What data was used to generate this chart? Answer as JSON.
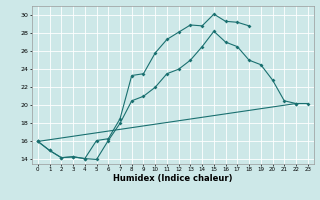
{
  "title": "",
  "xlabel": "Humidex (Indice chaleur)",
  "bg_color": "#cde8e8",
  "grid_color": "#ffffff",
  "line_color": "#1a7070",
  "xlim": [
    -0.5,
    23.5
  ],
  "ylim": [
    13.5,
    31.0
  ],
  "xticks": [
    0,
    1,
    2,
    3,
    4,
    5,
    6,
    7,
    8,
    9,
    10,
    11,
    12,
    13,
    14,
    15,
    16,
    17,
    18,
    19,
    20,
    21,
    22,
    23
  ],
  "yticks": [
    14,
    16,
    18,
    20,
    22,
    24,
    26,
    28,
    30
  ],
  "line1_x": [
    0,
    1,
    2,
    3,
    4,
    5,
    6,
    7,
    8,
    9,
    10,
    11,
    12,
    13,
    14,
    15,
    16,
    17,
    18
  ],
  "line1_y": [
    16,
    15,
    14.2,
    14.3,
    14.1,
    16.1,
    16.3,
    18.5,
    23.3,
    23.5,
    25.8,
    27.3,
    28.1,
    28.9,
    28.8,
    30.1,
    29.3,
    29.2,
    28.8
  ],
  "line2_x": [
    0,
    1,
    2,
    3,
    4,
    5,
    6,
    7,
    8,
    9,
    10,
    11,
    12,
    13,
    14,
    15,
    16,
    17,
    18,
    19,
    20,
    21,
    22
  ],
  "line2_y": [
    16,
    15,
    14.2,
    14.3,
    14.1,
    14.0,
    16.1,
    18.0,
    20.5,
    21.0,
    22.0,
    23.5,
    24.0,
    25.0,
    26.5,
    28.2,
    27.0,
    26.5,
    25.0,
    24.5,
    22.8,
    20.5,
    20.2
  ],
  "line3_x": [
    0,
    22,
    23
  ],
  "line3_y": [
    16,
    20.2,
    20.2
  ]
}
